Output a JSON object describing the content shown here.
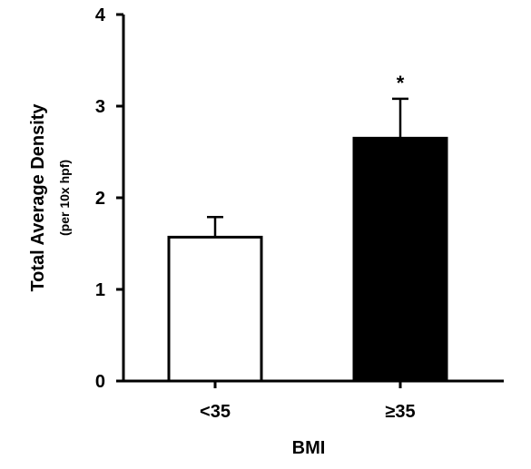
{
  "chart_data": {
    "type": "bar",
    "categories": [
      "<35",
      "≥35"
    ],
    "values": [
      1.57,
      2.65
    ],
    "errors": [
      0.22,
      0.43
    ],
    "significance": [
      "",
      "*"
    ],
    "bar_colors": [
      "#ffffff",
      "#000000"
    ],
    "xlabel": "BMI",
    "ylabel": "Total Average Density",
    "ylabel_sub": "(per 10x hpf)",
    "ylim": [
      0,
      4
    ],
    "yticks": [
      0,
      1,
      2,
      3,
      4
    ],
    "grid": false
  }
}
